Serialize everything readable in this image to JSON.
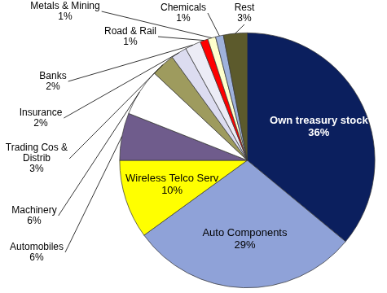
{
  "chart_data": {
    "type": "pie",
    "categories": [
      "Own treasury stock",
      "Auto Components",
      "Wireless Telco Serv",
      "Automobiles",
      "Machinery",
      "Trading Cos & Distrib",
      "Insurance",
      "Banks",
      "Road & Rail",
      "Metals & Mining",
      "Chemicals",
      "Rest"
    ],
    "values": [
      36,
      29,
      10,
      6,
      6,
      3,
      2,
      2,
      1,
      1,
      1,
      3
    ],
    "value_labels": [
      "36%",
      "29%",
      "10%",
      "6%",
      "6%",
      "3%",
      "2%",
      "2%",
      "1%",
      "1%",
      "1%",
      "3%"
    ],
    "colors": [
      "#0b1f5e",
      "#8fa2d8",
      "#ffff00",
      "#6f5c8c",
      "#ffffff",
      "#9e9b5e",
      "#dcdcf0",
      "#ececf6",
      "#ff0000",
      "#ffffcc",
      "#9fb2dc",
      "#5c5a2c"
    ],
    "data_labels": true
  }
}
